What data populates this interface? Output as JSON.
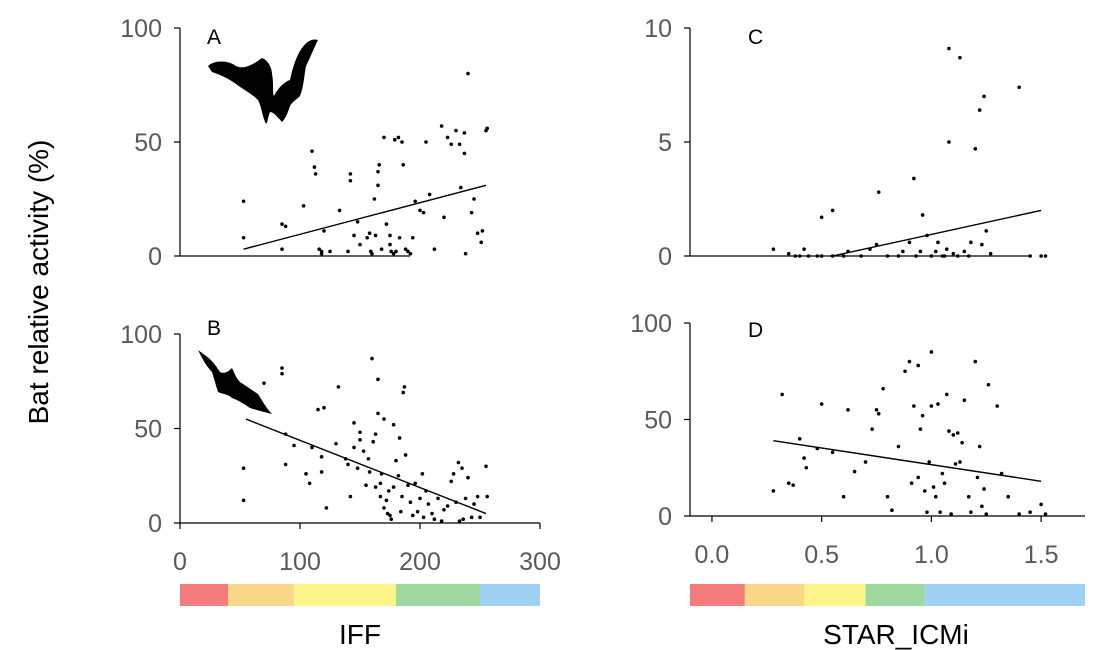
{
  "ylabel": "Bat relative activity (%)",
  "xlabel_left": "IFF",
  "xlabel_right": "STAR_ICMi",
  "color_scale_colors": [
    "#f47c7c",
    "#fad88a",
    "#fbf58a",
    "#9fd89f",
    "#9fd2f2"
  ],
  "color_scale_left_breaks": [
    0,
    40,
    95,
    180,
    250,
    300
  ],
  "color_scale_right_breaks": [
    -0.1,
    0.15,
    0.42,
    0.7,
    0.97,
    1.7
  ],
  "icons": [
    "bat-silhouette-icon",
    "bat-silhouette-icon"
  ],
  "chart_data": [
    {
      "type": "scatter",
      "panel": "A",
      "xlabel": "",
      "ylabel": "",
      "xlim": [
        0,
        300
      ],
      "ylim": [
        0,
        100
      ],
      "yticks": [
        "0",
        "50",
        "100"
      ],
      "trend": [
        [
          53,
          3
        ],
        [
          255,
          31
        ]
      ],
      "points": [
        [
          53,
          24
        ],
        [
          53,
          8
        ],
        [
          85,
          14
        ],
        [
          88,
          13
        ],
        [
          85,
          3
        ],
        [
          103,
          22
        ],
        [
          110,
          46
        ],
        [
          112,
          39
        ],
        [
          113,
          36
        ],
        [
          116,
          3
        ],
        [
          118,
          2
        ],
        [
          118,
          1
        ],
        [
          120,
          11
        ],
        [
          125,
          2
        ],
        [
          133,
          20
        ],
        [
          140,
          2
        ],
        [
          142,
          36
        ],
        [
          142,
          33
        ],
        [
          145,
          9
        ],
        [
          148,
          15
        ],
        [
          150,
          5
        ],
        [
          156,
          8
        ],
        [
          158,
          10
        ],
        [
          159,
          2
        ],
        [
          160,
          1
        ],
        [
          162,
          25
        ],
        [
          163,
          9
        ],
        [
          165,
          37
        ],
        [
          165,
          31
        ],
        [
          166,
          40
        ],
        [
          168,
          3
        ],
        [
          170,
          52
        ],
        [
          172,
          14
        ],
        [
          175,
          9
        ],
        [
          175,
          5
        ],
        [
          176,
          2
        ],
        [
          178,
          1
        ],
        [
          179,
          51
        ],
        [
          180,
          2
        ],
        [
          182,
          52
        ],
        [
          183,
          8
        ],
        [
          185,
          50
        ],
        [
          186,
          40
        ],
        [
          188,
          3
        ],
        [
          190,
          2
        ],
        [
          192,
          1
        ],
        [
          194,
          8
        ],
        [
          196,
          24
        ],
        [
          200,
          20
        ],
        [
          203,
          19
        ],
        [
          205,
          50
        ],
        [
          208,
          27
        ],
        [
          212,
          3
        ],
        [
          218,
          57
        ],
        [
          220,
          17
        ],
        [
          223,
          52
        ],
        [
          226,
          49
        ],
        [
          230,
          55
        ],
        [
          233,
          49
        ],
        [
          234,
          30
        ],
        [
          237,
          45
        ],
        [
          237,
          54
        ],
        [
          238,
          1
        ],
        [
          240,
          80
        ],
        [
          243,
          19
        ],
        [
          245,
          25
        ],
        [
          248,
          10
        ],
        [
          251,
          6
        ],
        [
          252,
          11
        ],
        [
          255,
          55
        ],
        [
          256,
          56
        ]
      ]
    },
    {
      "type": "scatter",
      "panel": "B",
      "xlabel": "",
      "ylabel": "",
      "xlim": [
        0,
        300
      ],
      "ylim": [
        0,
        100
      ],
      "xticks": [
        "0",
        "100",
        "200",
        "300"
      ],
      "yticks": [
        "0",
        "50",
        "100"
      ],
      "trend": [
        [
          55,
          55
        ],
        [
          255,
          5
        ]
      ],
      "points": [
        [
          53,
          29
        ],
        [
          53,
          12
        ],
        [
          70,
          74
        ],
        [
          85,
          82
        ],
        [
          85,
          79
        ],
        [
          88,
          47
        ],
        [
          88,
          31
        ],
        [
          95,
          41
        ],
        [
          105,
          26
        ],
        [
          108,
          21
        ],
        [
          110,
          40
        ],
        [
          115,
          60
        ],
        [
          118,
          35
        ],
        [
          118,
          27
        ],
        [
          120,
          61
        ],
        [
          122,
          8
        ],
        [
          130,
          42
        ],
        [
          132,
          72
        ],
        [
          138,
          34
        ],
        [
          140,
          31
        ],
        [
          142,
          14
        ],
        [
          145,
          53
        ],
        [
          145,
          40
        ],
        [
          148,
          29
        ],
        [
          150,
          48
        ],
        [
          150,
          44
        ],
        [
          153,
          38
        ],
        [
          155,
          20
        ],
        [
          157,
          34
        ],
        [
          158,
          27
        ],
        [
          160,
          87
        ],
        [
          161,
          43
        ],
        [
          163,
          47
        ],
        [
          163,
          19
        ],
        [
          165,
          76
        ],
        [
          165,
          58
        ],
        [
          167,
          21
        ],
        [
          167,
          14
        ],
        [
          168,
          26
        ],
        [
          170,
          55
        ],
        [
          170,
          8
        ],
        [
          172,
          12
        ],
        [
          173,
          5
        ],
        [
          174,
          17
        ],
        [
          175,
          4
        ],
        [
          176,
          2
        ],
        [
          178,
          52
        ],
        [
          178,
          19
        ],
        [
          180,
          33
        ],
        [
          182,
          25
        ],
        [
          183,
          45
        ],
        [
          184,
          6
        ],
        [
          185,
          14
        ],
        [
          186,
          69
        ],
        [
          187,
          72
        ],
        [
          188,
          36
        ],
        [
          190,
          20
        ],
        [
          192,
          11
        ],
        [
          194,
          4
        ],
        [
          196,
          21
        ],
        [
          198,
          6
        ],
        [
          200,
          13
        ],
        [
          202,
          26
        ],
        [
          203,
          3
        ],
        [
          205,
          17
        ],
        [
          207,
          10
        ],
        [
          210,
          5
        ],
        [
          212,
          2
        ],
        [
          215,
          13
        ],
        [
          218,
          1
        ],
        [
          220,
          7
        ],
        [
          223,
          9
        ],
        [
          226,
          22
        ],
        [
          228,
          26
        ],
        [
          230,
          11
        ],
        [
          232,
          32
        ],
        [
          233,
          1
        ],
        [
          235,
          29
        ],
        [
          236,
          2
        ],
        [
          238,
          13
        ],
        [
          240,
          24
        ],
        [
          243,
          3
        ],
        [
          245,
          10
        ],
        [
          248,
          14
        ],
        [
          250,
          3
        ],
        [
          255,
          30
        ],
        [
          256,
          14
        ]
      ]
    },
    {
      "type": "scatter",
      "panel": "C",
      "xlabel": "",
      "ylabel": "",
      "xlim": [
        -0.1,
        1.7
      ],
      "ylim": [
        0,
        10
      ],
      "yticks": [
        "0",
        "5",
        "10"
      ],
      "trend": [
        [
          0.55,
          0.0
        ],
        [
          1.5,
          2.0
        ]
      ],
      "points": [
        [
          0.28,
          0.3
        ],
        [
          0.35,
          0.1
        ],
        [
          0.38,
          0.0
        ],
        [
          0.4,
          0.0
        ],
        [
          0.42,
          0.3
        ],
        [
          0.44,
          0.0
        ],
        [
          0.48,
          0.0
        ],
        [
          0.5,
          0.0
        ],
        [
          0.5,
          1.7
        ],
        [
          0.55,
          0.0
        ],
        [
          0.55,
          2.0
        ],
        [
          0.6,
          0.0
        ],
        [
          0.62,
          0.2
        ],
        [
          0.68,
          0.0
        ],
        [
          0.72,
          0.3
        ],
        [
          0.75,
          0.5
        ],
        [
          0.76,
          2.8
        ],
        [
          0.8,
          0.0
        ],
        [
          0.85,
          0.0
        ],
        [
          0.87,
          0.2
        ],
        [
          0.9,
          0.6
        ],
        [
          0.92,
          3.4
        ],
        [
          0.93,
          0.0
        ],
        [
          0.95,
          0.2
        ],
        [
          0.96,
          1.8
        ],
        [
          0.98,
          0.9
        ],
        [
          1.0,
          0.0
        ],
        [
          1.02,
          0.2
        ],
        [
          1.03,
          0.6
        ],
        [
          1.05,
          0.0
        ],
        [
          1.06,
          0.0
        ],
        [
          1.07,
          0.3
        ],
        [
          1.08,
          5.0
        ],
        [
          1.08,
          9.1
        ],
        [
          1.1,
          0.1
        ],
        [
          1.12,
          0.0
        ],
        [
          1.13,
          8.7
        ],
        [
          1.15,
          0.2
        ],
        [
          1.17,
          0.0
        ],
        [
          1.18,
          0.6
        ],
        [
          1.2,
          4.7
        ],
        [
          1.22,
          6.4
        ],
        [
          1.23,
          0.5
        ],
        [
          1.24,
          7.0
        ],
        [
          1.25,
          1.1
        ],
        [
          1.27,
          0.1
        ],
        [
          1.4,
          7.4
        ],
        [
          1.45,
          0.0
        ],
        [
          1.5,
          0.0
        ],
        [
          1.52,
          0.0
        ]
      ]
    },
    {
      "type": "scatter",
      "panel": "D",
      "xlabel": "",
      "ylabel": "",
      "xlim": [
        -0.1,
        1.7
      ],
      "ylim": [
        0,
        100
      ],
      "xticks": [
        "0.0",
        "0.5",
        "1.0",
        "1.5"
      ],
      "yticks": [
        "0",
        "50",
        "100"
      ],
      "trend": [
        [
          0.28,
          39
        ],
        [
          1.5,
          18
        ]
      ],
      "points": [
        [
          0.28,
          13
        ],
        [
          0.32,
          63
        ],
        [
          0.35,
          17
        ],
        [
          0.37,
          16
        ],
        [
          0.4,
          40
        ],
        [
          0.42,
          30
        ],
        [
          0.43,
          25
        ],
        [
          0.48,
          35
        ],
        [
          0.5,
          58
        ],
        [
          0.55,
          33
        ],
        [
          0.6,
          10
        ],
        [
          0.62,
          55
        ],
        [
          0.65,
          23
        ],
        [
          0.7,
          28
        ],
        [
          0.73,
          45
        ],
        [
          0.75,
          55
        ],
        [
          0.76,
          53
        ],
        [
          0.78,
          66
        ],
        [
          0.8,
          10
        ],
        [
          0.82,
          3
        ],
        [
          0.85,
          36
        ],
        [
          0.88,
          75
        ],
        [
          0.9,
          80
        ],
        [
          0.91,
          17
        ],
        [
          0.92,
          57
        ],
        [
          0.94,
          78
        ],
        [
          0.94,
          20
        ],
        [
          0.95,
          45
        ],
        [
          0.96,
          52
        ],
        [
          0.97,
          13
        ],
        [
          0.98,
          2
        ],
        [
          0.99,
          28
        ],
        [
          1.0,
          57
        ],
        [
          1.0,
          85
        ],
        [
          1.01,
          15
        ],
        [
          1.02,
          10
        ],
        [
          1.03,
          58
        ],
        [
          1.04,
          2
        ],
        [
          1.05,
          22
        ],
        [
          1.06,
          17
        ],
        [
          1.07,
          63
        ],
        [
          1.08,
          44
        ],
        [
          1.09,
          1
        ],
        [
          1.1,
          42
        ],
        [
          1.11,
          27
        ],
        [
          1.12,
          43
        ],
        [
          1.13,
          28
        ],
        [
          1.14,
          38
        ],
        [
          1.15,
          60
        ],
        [
          1.17,
          10
        ],
        [
          1.18,
          2
        ],
        [
          1.2,
          80
        ],
        [
          1.21,
          20
        ],
        [
          1.22,
          36
        ],
        [
          1.23,
          5
        ],
        [
          1.24,
          14
        ],
        [
          1.25,
          1
        ],
        [
          1.26,
          68
        ],
        [
          1.3,
          57
        ],
        [
          1.32,
          22
        ],
        [
          1.35,
          10
        ],
        [
          1.4,
          1
        ],
        [
          1.45,
          2
        ],
        [
          1.5,
          6
        ],
        [
          1.52,
          1
        ]
      ]
    }
  ]
}
